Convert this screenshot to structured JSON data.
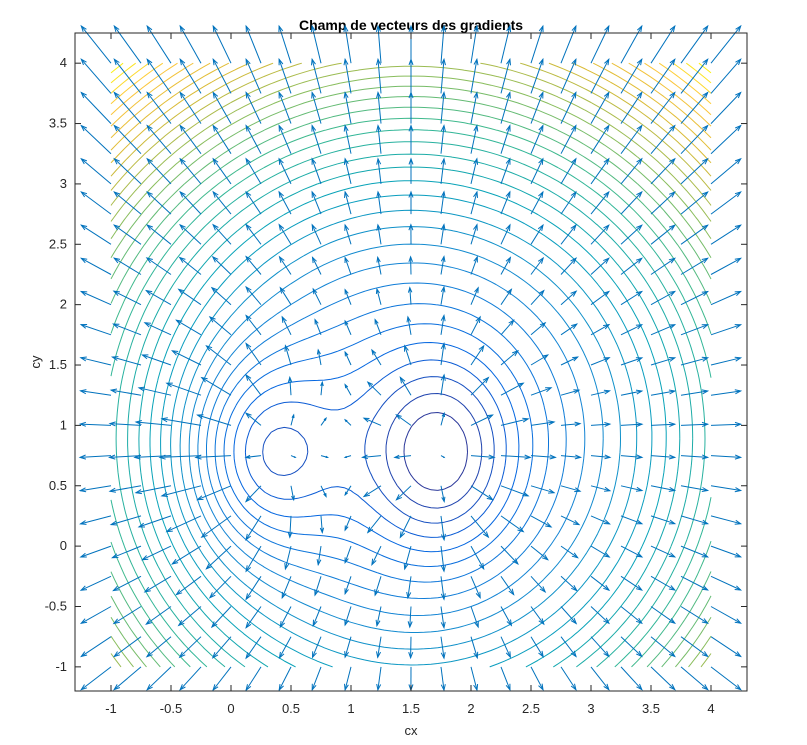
{
  "chart_data": {
    "type": "contour+quiver",
    "title": "Champ de vecteurs des gradients",
    "xlabel": "cx",
    "ylabel": "cy",
    "xlim": [
      -1.3,
      4.3
    ],
    "ylim": [
      -1.2,
      4.25
    ],
    "xticks": [
      -1,
      -0.5,
      0,
      0.5,
      1,
      1.5,
      2,
      2.5,
      3,
      3.5,
      4
    ],
    "xtick_labels": [
      "-1",
      "-0.5",
      "0",
      "0.5",
      "1",
      "1.5",
      "2",
      "2.5",
      "3",
      "3.5",
      "4"
    ],
    "yticks": [
      -1,
      -0.5,
      0,
      0.5,
      1,
      1.5,
      2,
      2.5,
      3,
      3.5,
      4
    ],
    "ytick_labels": [
      "-1",
      "-0.5",
      "0",
      "0.5",
      "1",
      "1.5",
      "2",
      "2.5",
      "3",
      "3.5",
      "4"
    ],
    "grid": false,
    "domain": {
      "x": [
        -1,
        4
      ],
      "y": [
        -1,
        4
      ]
    },
    "minima": [
      {
        "x": 0.25,
        "y": 0.75
      },
      {
        "x": 1.75,
        "y": 0.75
      }
    ],
    "contour_levels": 36,
    "quiver_grid_step": 0.25,
    "colormap": "parula",
    "quiver_color": "#0072BD"
  },
  "colors": {
    "axes": "#262626",
    "background": "#ffffff",
    "quiver": "#0072BD"
  }
}
